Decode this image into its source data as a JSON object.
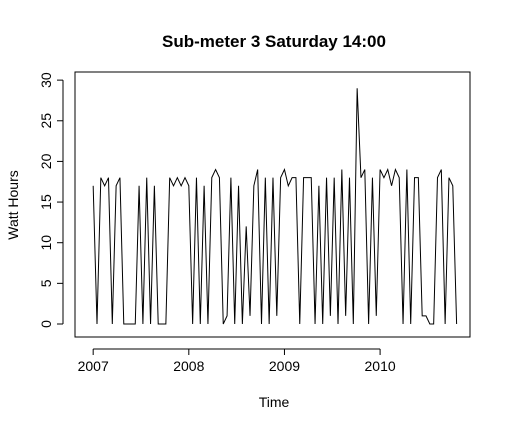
{
  "chart_data": {
    "type": "line",
    "title": "Sub-meter 3 Saturday 14:00",
    "x_label": "Time",
    "y_label": "Watt Hours",
    "x": [
      2007,
      2007.04,
      2007.08,
      2007.12,
      2007.16,
      2007.2,
      2007.24,
      2007.28,
      2007.32,
      2007.36,
      2007.4,
      2007.44,
      2007.48,
      2007.52,
      2007.56,
      2007.6,
      2007.64,
      2007.68,
      2007.72,
      2007.76,
      2007.8,
      2007.84,
      2007.88,
      2007.92,
      2007.96,
      2008,
      2008.04,
      2008.08,
      2008.12,
      2008.16,
      2008.2,
      2008.24,
      2008.28,
      2008.32,
      2008.36,
      2008.4,
      2008.44,
      2008.48,
      2008.52,
      2008.56,
      2008.6,
      2008.64,
      2008.68,
      2008.72,
      2008.76,
      2008.8,
      2008.84,
      2008.88,
      2008.92,
      2008.96,
      2009,
      2009.04,
      2009.08,
      2009.12,
      2009.16,
      2009.2,
      2009.24,
      2009.28,
      2009.32,
      2009.36,
      2009.4,
      2009.44,
      2009.48,
      2009.52,
      2009.56,
      2009.6,
      2009.64,
      2009.68,
      2009.72,
      2009.76,
      2009.8,
      2009.84,
      2009.88,
      2009.92,
      2009.96,
      2010,
      2010.04,
      2010.08,
      2010.12,
      2010.16,
      2010.2,
      2010.24,
      2010.28,
      2010.32,
      2010.36,
      2010.4,
      2010.44,
      2010.48,
      2010.52,
      2010.56,
      2010.6,
      2010.64,
      2010.68,
      2010.72,
      2010.76,
      2010.8
    ],
    "series": [
      {
        "color": "#000000",
        "values": [
          17,
          0,
          18,
          17,
          18,
          0,
          17,
          18,
          0,
          0,
          0,
          0,
          17,
          0,
          18,
          0,
          17,
          0,
          0,
          0,
          18,
          17,
          18,
          17,
          18,
          17,
          0,
          18,
          0,
          17,
          0,
          18,
          19,
          18,
          0,
          1,
          18,
          0,
          17,
          0,
          12,
          1,
          17,
          19,
          0,
          18,
          0,
          18,
          1,
          18,
          19,
          17,
          18,
          18,
          0,
          18,
          18,
          18,
          0,
          17,
          0,
          18,
          1,
          18,
          0,
          19,
          1,
          18,
          0,
          29,
          18,
          19,
          0,
          18,
          1,
          19,
          18,
          19,
          17,
          19,
          18,
          0,
          19,
          0,
          18,
          18,
          1,
          1,
          0,
          0,
          18,
          19,
          0,
          18,
          17,
          0
        ]
      }
    ],
    "xlim": [
      2006.81,
      2010.94
    ],
    "ylim": [
      -1.6,
      31
    ],
    "xticks": [
      2007,
      2008,
      2009,
      2010
    ],
    "yticks": [
      0,
      5,
      10,
      15,
      20,
      25,
      30
    ]
  }
}
